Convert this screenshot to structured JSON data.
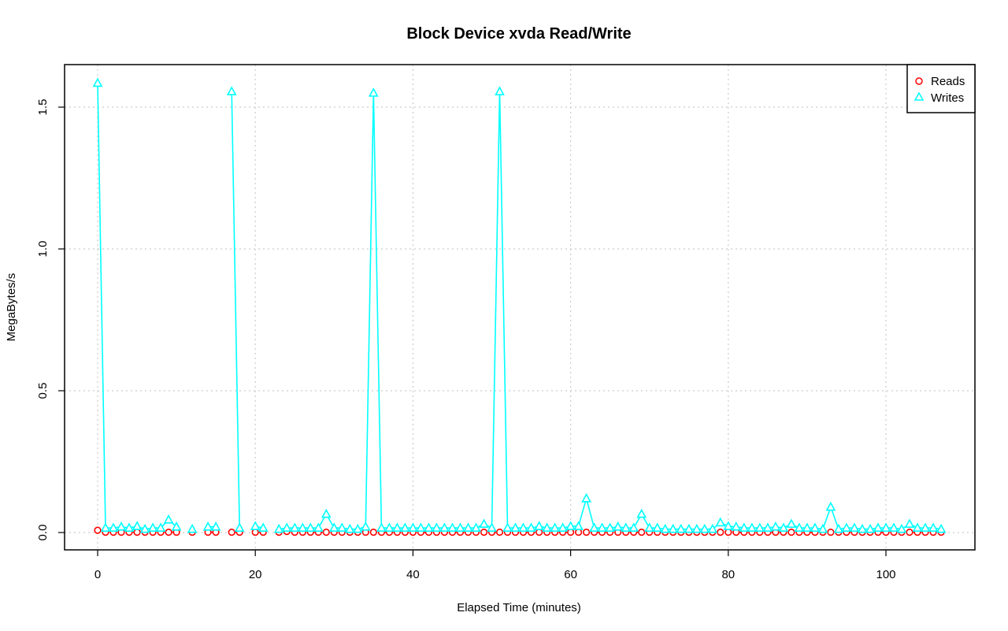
{
  "chart_data": {
    "type": "line",
    "title": "Block Device xvda Read/Write",
    "xlabel": "Elapsed Time (minutes)",
    "ylabel": "MegaBytes/s",
    "xlim": [
      -4,
      111
    ],
    "ylim": [
      -0.065,
      1.655
    ],
    "x_ticks": [
      0,
      20,
      40,
      60,
      80,
      100
    ],
    "y_ticks": [
      0.0,
      0.5,
      1.0,
      1.5
    ],
    "x_tick_labels": [
      "0",
      "20",
      "40",
      "60",
      "80",
      "100"
    ],
    "y_tick_labels": [
      "0.0",
      "0.5",
      "1.0",
      "1.5"
    ],
    "grid": true,
    "legend_position": "top-right",
    "series": [
      {
        "name": "Reads",
        "color": "#ff0000",
        "marker": "circle",
        "line": "dotted",
        "x": [
          0,
          1,
          2,
          3,
          4,
          5,
          6,
          7,
          8,
          9,
          10,
          12,
          14,
          15,
          17,
          18,
          20,
          21,
          23,
          24,
          25,
          26,
          27,
          28,
          29,
          30,
          31,
          32,
          33,
          34,
          35,
          36,
          37,
          38,
          39,
          40,
          41,
          42,
          43,
          44,
          45,
          46,
          47,
          48,
          49,
          50,
          51,
          52,
          53,
          54,
          55,
          56,
          57,
          58,
          59,
          60,
          61,
          62,
          63,
          64,
          65,
          66,
          67,
          68,
          69,
          70,
          71,
          72,
          73,
          74,
          75,
          76,
          77,
          78,
          79,
          80,
          81,
          82,
          83,
          84,
          85,
          86,
          87,
          88,
          89,
          90,
          91,
          92,
          93,
          94,
          95,
          96,
          97,
          98,
          99,
          100,
          101,
          102,
          103,
          104,
          105,
          106,
          107
        ],
        "values": [
          0.008,
          0.001,
          0.001,
          0.001,
          0.001,
          0.001,
          0.001,
          0.001,
          0.001,
          0.001,
          0.001,
          0.001,
          0.001,
          0.001,
          0.001,
          0.001,
          0.001,
          0.001,
          0.001,
          0.004,
          0.001,
          0.001,
          0.001,
          0.001,
          0.001,
          0.001,
          0.001,
          0.001,
          0.001,
          0.001,
          0.001,
          0.001,
          0.001,
          0.001,
          0.001,
          0.001,
          0.001,
          0.001,
          0.001,
          0.001,
          0.001,
          0.001,
          0.001,
          0.001,
          0.001,
          0.001,
          0.001,
          0.001,
          0.001,
          0.001,
          0.001,
          0.001,
          0.001,
          0.001,
          0.001,
          0.001,
          0.001,
          0.001,
          0.001,
          0.001,
          0.001,
          0.001,
          0.001,
          0.001,
          0.001,
          0.001,
          0.001,
          0.001,
          0.001,
          0.001,
          0.001,
          0.001,
          0.001,
          0.001,
          0.001,
          0.001,
          0.001,
          0.001,
          0.001,
          0.001,
          0.001,
          0.001,
          0.001,
          0.001,
          0.001,
          0.001,
          0.001,
          0.001,
          0.001,
          0.001,
          0.001,
          0.001,
          0.001,
          0.001,
          0.001,
          0.001,
          0.001,
          0.001,
          0.001,
          0.001,
          0.001,
          0.001,
          0.001
        ]
      },
      {
        "name": "Writes",
        "color": "#00ffff",
        "marker": "triangle",
        "line": "solid",
        "x": [
          0,
          1,
          2,
          3,
          4,
          5,
          6,
          7,
          8,
          9,
          10,
          12,
          14,
          15,
          17,
          18,
          20,
          21,
          23,
          24,
          25,
          26,
          27,
          28,
          29,
          30,
          31,
          32,
          33,
          34,
          35,
          36,
          37,
          38,
          39,
          40,
          41,
          42,
          43,
          44,
          45,
          46,
          47,
          48,
          49,
          50,
          51,
          52,
          53,
          54,
          55,
          56,
          57,
          58,
          59,
          60,
          61,
          62,
          63,
          64,
          65,
          66,
          67,
          68,
          69,
          70,
          71,
          72,
          73,
          74,
          75,
          76,
          77,
          78,
          79,
          80,
          81,
          82,
          83,
          84,
          85,
          86,
          87,
          88,
          89,
          90,
          91,
          92,
          93,
          94,
          95,
          96,
          97,
          98,
          99,
          100,
          101,
          102,
          103,
          104,
          105,
          106,
          107
        ],
        "values": [
          1.585,
          0.016,
          0.016,
          0.02,
          0.016,
          0.022,
          0.012,
          0.016,
          0.016,
          0.045,
          0.02,
          0.012,
          0.02,
          0.02,
          1.555,
          0.016,
          0.022,
          0.016,
          0.012,
          0.016,
          0.016,
          0.016,
          0.016,
          0.016,
          0.065,
          0.016,
          0.016,
          0.012,
          0.012,
          0.02,
          1.55,
          0.016,
          0.016,
          0.016,
          0.016,
          0.016,
          0.016,
          0.016,
          0.016,
          0.016,
          0.016,
          0.016,
          0.016,
          0.016,
          0.03,
          0.016,
          1.555,
          0.016,
          0.016,
          0.016,
          0.016,
          0.022,
          0.016,
          0.016,
          0.016,
          0.022,
          0.022,
          0.12,
          0.016,
          0.016,
          0.016,
          0.02,
          0.016,
          0.016,
          0.065,
          0.016,
          0.016,
          0.012,
          0.012,
          0.012,
          0.012,
          0.012,
          0.012,
          0.012,
          0.035,
          0.022,
          0.02,
          0.016,
          0.016,
          0.016,
          0.016,
          0.02,
          0.016,
          0.03,
          0.016,
          0.016,
          0.016,
          0.012,
          0.09,
          0.012,
          0.016,
          0.016,
          0.012,
          0.012,
          0.016,
          0.016,
          0.016,
          0.012,
          0.03,
          0.016,
          0.016,
          0.016,
          0.012
        ]
      }
    ],
    "gaps_after_x": [
      10,
      12,
      15,
      18,
      21
    ]
  }
}
